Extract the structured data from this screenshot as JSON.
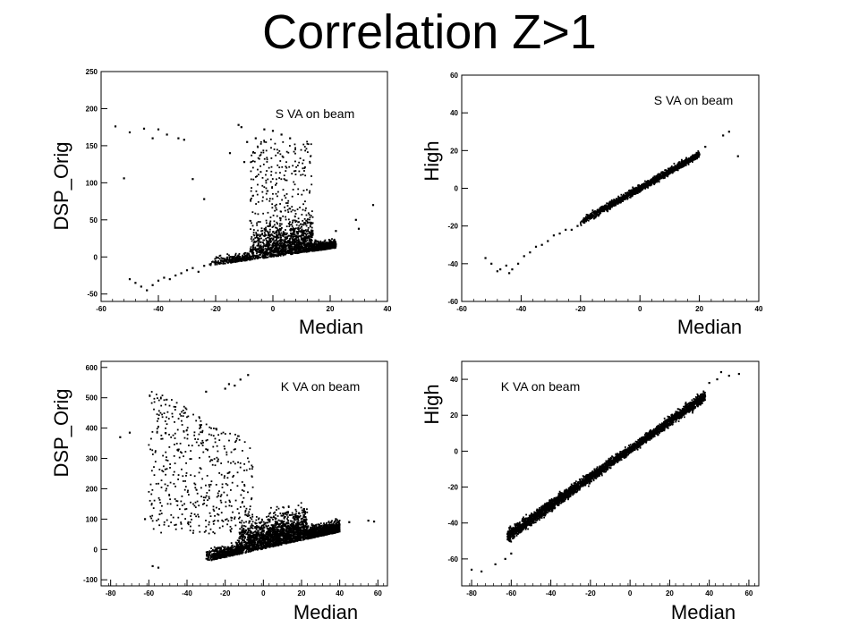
{
  "slide": {
    "title": "Correlation Z>1"
  },
  "chart_data": [
    {
      "type": "scatter",
      "label": "S VA on beam",
      "xlabel": "Median",
      "ylabel": "DSP_Orig",
      "xlim": [
        -60,
        40
      ],
      "ylim": [
        -60,
        250
      ],
      "xticks": [
        -60,
        -40,
        -20,
        0,
        20,
        40
      ],
      "yticks": [
        -50,
        0,
        50,
        100,
        150,
        200,
        250
      ],
      "points": [
        [
          -55,
          176
        ],
        [
          -50,
          168
        ],
        [
          -45,
          173
        ],
        [
          -42,
          160
        ],
        [
          -40,
          172
        ],
        [
          -37,
          165
        ],
        [
          -33,
          160
        ],
        [
          -31,
          158
        ],
        [
          -52,
          106
        ],
        [
          -28,
          105
        ],
        [
          -24,
          78
        ],
        [
          35,
          70
        ],
        [
          29,
          50
        ],
        [
          30,
          38
        ],
        [
          22,
          35
        ],
        [
          -12,
          178
        ],
        [
          -11,
          175
        ],
        [
          -9,
          155
        ],
        [
          -6,
          160
        ],
        [
          -3,
          172
        ],
        [
          0,
          170
        ],
        [
          3,
          165
        ],
        [
          6,
          160
        ],
        [
          -15,
          140
        ],
        [
          -10,
          128
        ],
        [
          -50,
          -30
        ],
        [
          -48,
          -35
        ],
        [
          -46,
          -40
        ],
        [
          -44,
          -45
        ],
        [
          -42,
          -38
        ],
        [
          -40,
          -32
        ],
        [
          -38,
          -28
        ],
        [
          -36,
          -30
        ],
        [
          -34,
          -25
        ],
        [
          -32,
          -22
        ],
        [
          -30,
          -18
        ],
        [
          -28,
          -15
        ],
        [
          -26,
          -20
        ],
        [
          -24,
          -12
        ],
        [
          -22,
          -10
        ],
        [
          -20,
          -8
        ],
        [
          -18,
          -5
        ],
        [
          -16,
          -3
        ],
        [
          -14,
          0
        ],
        [
          -12,
          2
        ]
      ]
    },
    {
      "type": "scatter",
      "label": "S VA on beam",
      "xlabel": "Median",
      "ylabel": "High",
      "xlim": [
        -60,
        40
      ],
      "ylim": [
        -60,
        60
      ],
      "xticks": [
        -60,
        -40,
        -20,
        0,
        20,
        40
      ],
      "yticks": [
        -60,
        -40,
        -20,
        0,
        20,
        40,
        60
      ],
      "points": [
        [
          -52,
          -37
        ],
        [
          -50,
          -40
        ],
        [
          -48,
          -44
        ],
        [
          -47,
          -43
        ],
        [
          -45,
          -41
        ],
        [
          -44,
          -45
        ],
        [
          -43,
          -43
        ],
        [
          -41,
          -40
        ],
        [
          -39,
          -36
        ],
        [
          -37,
          -34
        ],
        [
          -35,
          -31
        ],
        [
          -33,
          -30
        ],
        [
          -31,
          -28
        ],
        [
          -29,
          -25
        ],
        [
          -27,
          -24
        ],
        [
          -25,
          -22
        ],
        [
          -23,
          -22
        ],
        [
          -21,
          -20
        ],
        [
          28,
          28
        ],
        [
          30,
          30
        ],
        [
          33,
          17
        ],
        [
          22,
          22
        ],
        [
          20,
          18
        ]
      ]
    },
    {
      "type": "scatter",
      "label": "K VA on beam",
      "xlabel": "Median",
      "ylabel": "DSP_Orig",
      "xlim": [
        -85,
        65
      ],
      "ylim": [
        -120,
        620
      ],
      "xticks": [
        -80,
        -60,
        -40,
        -20,
        0,
        20,
        40,
        60
      ],
      "yticks": [
        -100,
        0,
        100,
        200,
        300,
        400,
        500,
        600
      ],
      "points": [
        [
          -75,
          370
        ],
        [
          -70,
          385
        ],
        [
          -62,
          100
        ],
        [
          -58,
          -55
        ],
        [
          -55,
          -60
        ],
        [
          -30,
          520
        ],
        [
          -20,
          530
        ],
        [
          -18,
          545
        ],
        [
          -15,
          540
        ],
        [
          -12,
          560
        ],
        [
          -8,
          575
        ],
        [
          38,
          100
        ],
        [
          45,
          90
        ],
        [
          55,
          95
        ],
        [
          58,
          92
        ]
      ]
    },
    {
      "type": "scatter",
      "label": "K VA on beam",
      "xlabel": "Median",
      "ylabel": "High",
      "xlim": [
        -85,
        65
      ],
      "ylim": [
        -75,
        50
      ],
      "xticks": [
        -80,
        -60,
        -40,
        -20,
        0,
        20,
        40,
        60
      ],
      "yticks": [
        -60,
        -40,
        -20,
        0,
        20,
        40
      ],
      "points": [
        [
          -80,
          -66
        ],
        [
          -75,
          -67
        ],
        [
          -68,
          -63
        ],
        [
          -63,
          -60
        ],
        [
          -60,
          -57
        ],
        [
          40,
          38
        ],
        [
          44,
          40
        ],
        [
          50,
          42
        ],
        [
          55,
          43
        ],
        [
          46,
          44
        ]
      ]
    }
  ]
}
